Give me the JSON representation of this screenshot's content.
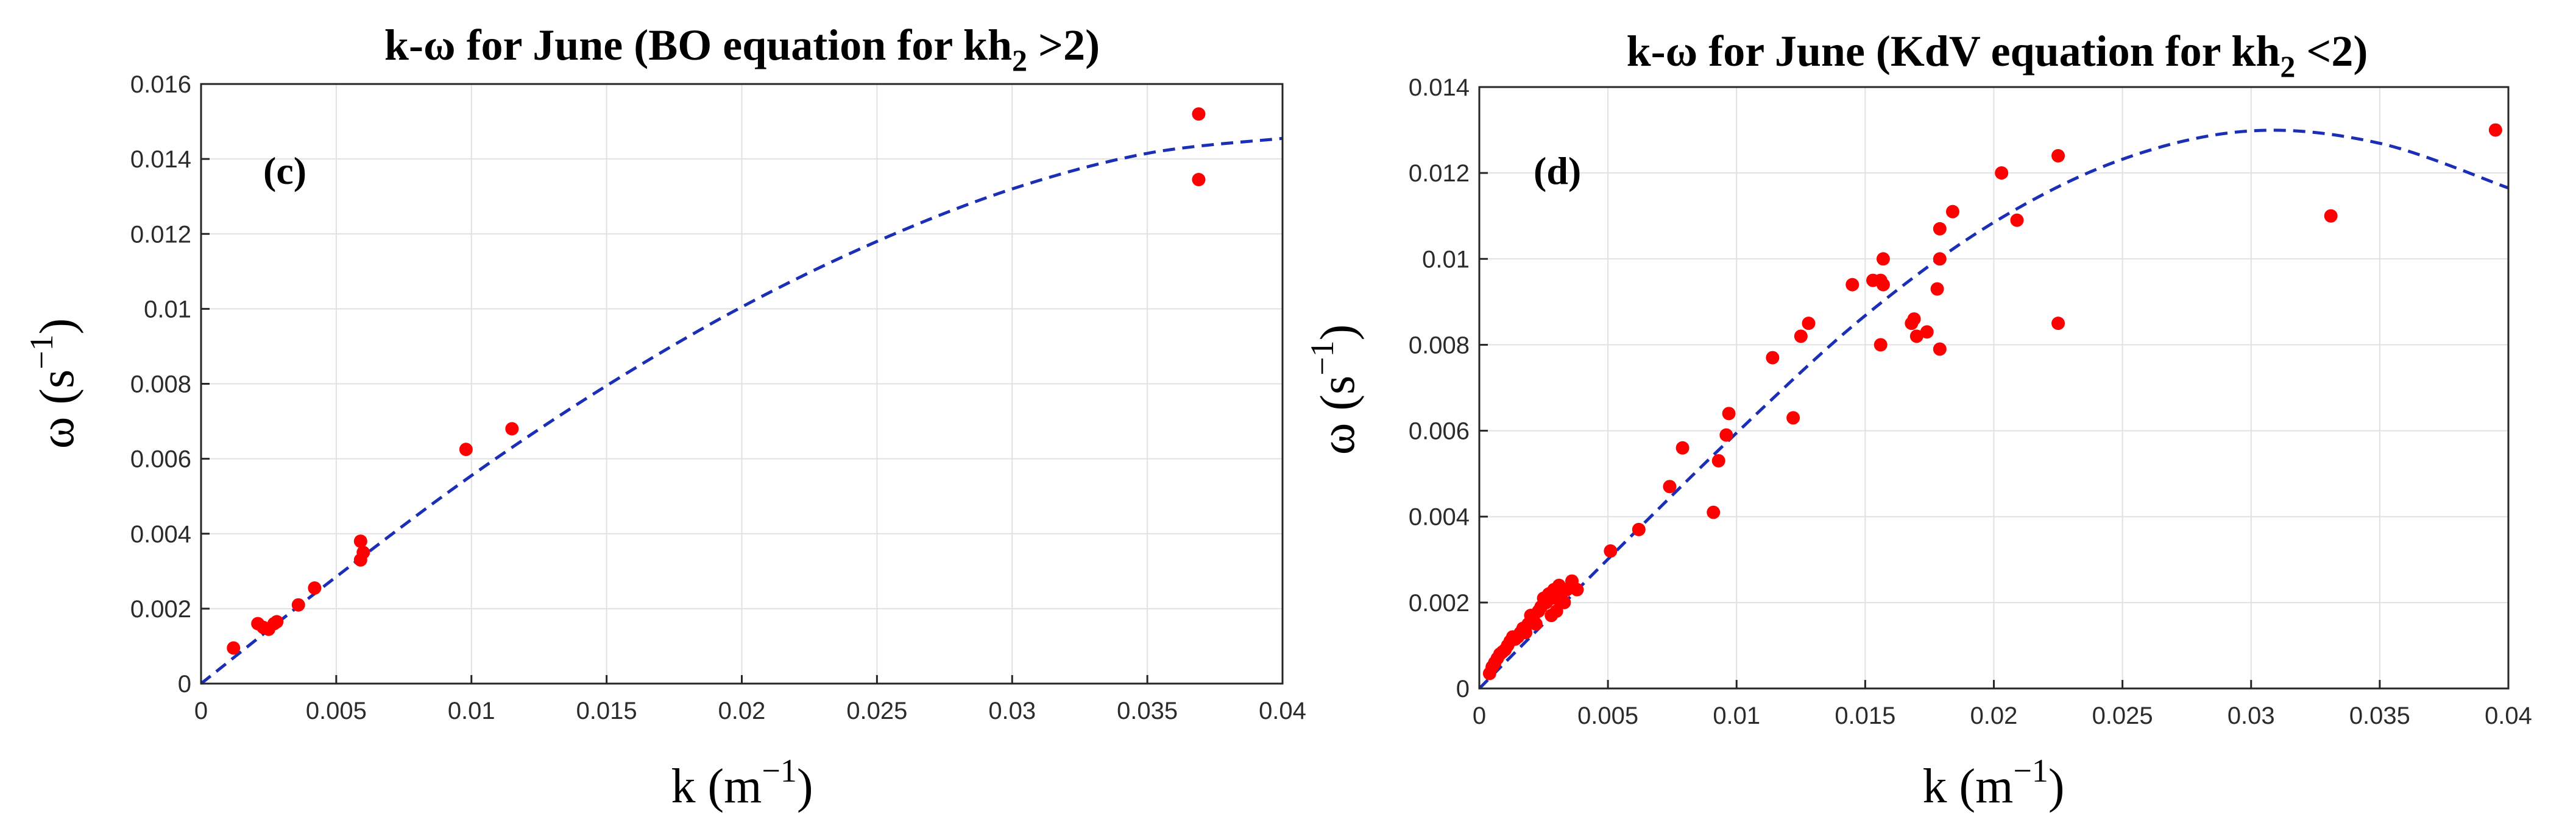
{
  "chart_data": [
    {
      "type": "scatter",
      "title": "k-ω for June (BO equation for kh",
      "title_sub": "2",
      "title_tail": " >2)",
      "panel_label": "(c)",
      "xlabel": "k (m",
      "xlabel_sup": "−1",
      "xlabel_tail": ")",
      "ylabel": "ω (s",
      "ylabel_sup": "−1",
      "ylabel_tail": ")",
      "xlim": [
        0,
        0.04
      ],
      "ylim": [
        0,
        0.016
      ],
      "x_ticks": [
        0,
        0.005,
        0.01,
        0.015,
        0.02,
        0.025,
        0.03,
        0.035,
        0.04
      ],
      "x_tick_labels": [
        "0",
        "0.005",
        "0.01",
        "0.015",
        "0.02",
        "0.025",
        "0.03",
        "0.035",
        "0.04"
      ],
      "y_ticks": [
        0,
        0.002,
        0.004,
        0.006,
        0.008,
        0.01,
        0.012,
        0.014,
        0.016
      ],
      "y_tick_labels": [
        "0",
        "0.002",
        "0.004",
        "0.006",
        "0.008",
        "0.01",
        "0.012",
        "0.014",
        "0.016"
      ],
      "grid": true,
      "points": {
        "x": [
          0.0012,
          0.0021,
          0.0023,
          0.0025,
          0.0027,
          0.0028,
          0.0036,
          0.0042,
          0.0059,
          0.0059,
          0.006,
          0.0098,
          0.0115,
          0.0369,
          0.0369
        ],
        "y": [
          0.00095,
          0.0016,
          0.0015,
          0.00145,
          0.0016,
          0.00165,
          0.0021,
          0.00255,
          0.0038,
          0.0033,
          0.0035,
          0.00625,
          0.0068,
          0.0152,
          0.01345
        ]
      },
      "fit_curve": {
        "x": [
          0,
          0.005,
          0.01,
          0.015,
          0.02,
          0.025,
          0.03,
          0.035,
          0.04
        ],
        "y": [
          0,
          0.00285,
          0.00555,
          0.00795,
          0.01005,
          0.0118,
          0.0132,
          0.01415,
          0.01455
        ]
      },
      "colors": {
        "points": "#ff0000",
        "fit": "#1a2fb5"
      }
    },
    {
      "type": "scatter",
      "title": "k-ω for June (KdV equation for kh",
      "title_sub": "2",
      "title_tail": " <2)",
      "panel_label": "(d)",
      "xlabel": "k (m",
      "xlabel_sup": "−1",
      "xlabel_tail": ")",
      "ylabel": "ω (s",
      "ylabel_sup": "−1",
      "ylabel_tail": ")",
      "xlim": [
        0,
        0.04
      ],
      "ylim": [
        0,
        0.014
      ],
      "x_ticks": [
        0,
        0.005,
        0.01,
        0.015,
        0.02,
        0.025,
        0.03,
        0.035,
        0.04
      ],
      "x_tick_labels": [
        "0",
        "0.005",
        "0.01",
        "0.015",
        "0.02",
        "0.025",
        "0.03",
        "0.035",
        "0.04"
      ],
      "y_ticks": [
        0,
        0.002,
        0.004,
        0.006,
        0.008,
        0.01,
        0.012,
        0.014
      ],
      "y_tick_labels": [
        "0",
        "0.002",
        "0.004",
        "0.006",
        "0.008",
        "0.01",
        "0.012",
        "0.014"
      ],
      "grid": true,
      "points": {
        "x": [
          0.0004,
          0.0005,
          0.0006,
          0.0007,
          0.0008,
          0.0009,
          0.001,
          0.0011,
          0.0012,
          0.0013,
          0.0014,
          0.0015,
          0.0016,
          0.0017,
          0.0018,
          0.0019,
          0.002,
          0.0021,
          0.0022,
          0.0023,
          0.0024,
          0.0025,
          0.0026,
          0.0027,
          0.0028,
          0.0028,
          0.0029,
          0.003,
          0.003,
          0.0031,
          0.0032,
          0.0033,
          0.0034,
          0.0036,
          0.0038,
          0.0051,
          0.0062,
          0.0074,
          0.0079,
          0.0091,
          0.0093,
          0.0096,
          0.0097,
          0.0114,
          0.0122,
          0.0125,
          0.0128,
          0.0145,
          0.0153,
          0.0156,
          0.0156,
          0.0157,
          0.0157,
          0.0168,
          0.0169,
          0.017,
          0.0174,
          0.0178,
          0.0179,
          0.0179,
          0.0179,
          0.0184,
          0.0203,
          0.0209,
          0.0225,
          0.0225,
          0.0331,
          0.0395
        ],
        "y": [
          0.00035,
          0.0005,
          0.0006,
          0.0007,
          0.0008,
          0.00085,
          0.0009,
          0.001,
          0.0011,
          0.0012,
          0.00115,
          0.0012,
          0.0013,
          0.0014,
          0.0013,
          0.0015,
          0.0017,
          0.0016,
          0.0015,
          0.0018,
          0.0019,
          0.0021,
          0.002,
          0.0022,
          0.0017,
          0.0021,
          0.0023,
          0.0018,
          0.0021,
          0.0024,
          0.0022,
          0.002,
          0.0023,
          0.0025,
          0.0023,
          0.0032,
          0.0037,
          0.0047,
          0.0056,
          0.0041,
          0.0053,
          0.0059,
          0.0064,
          0.0077,
          0.0063,
          0.0082,
          0.0085,
          0.0094,
          0.0095,
          0.0095,
          0.008,
          0.0094,
          0.01,
          0.0085,
          0.0086,
          0.0082,
          0.0083,
          0.0093,
          0.0079,
          0.01,
          0.0107,
          0.0111,
          0.012,
          0.0109,
          0.0124,
          0.0085,
          0.011,
          0.013
        ]
      },
      "fit_curve": {
        "x": [
          0,
          0.005,
          0.01,
          0.015,
          0.02,
          0.025,
          0.03,
          0.035,
          0.04
        ],
        "y": [
          0,
          0.00301,
          0.00595,
          0.00868,
          0.01085,
          0.01232,
          0.01298,
          0.01269,
          0.01165
        ]
      },
      "colors": {
        "points": "#ff0000",
        "fit": "#1a2fb5"
      }
    }
  ]
}
